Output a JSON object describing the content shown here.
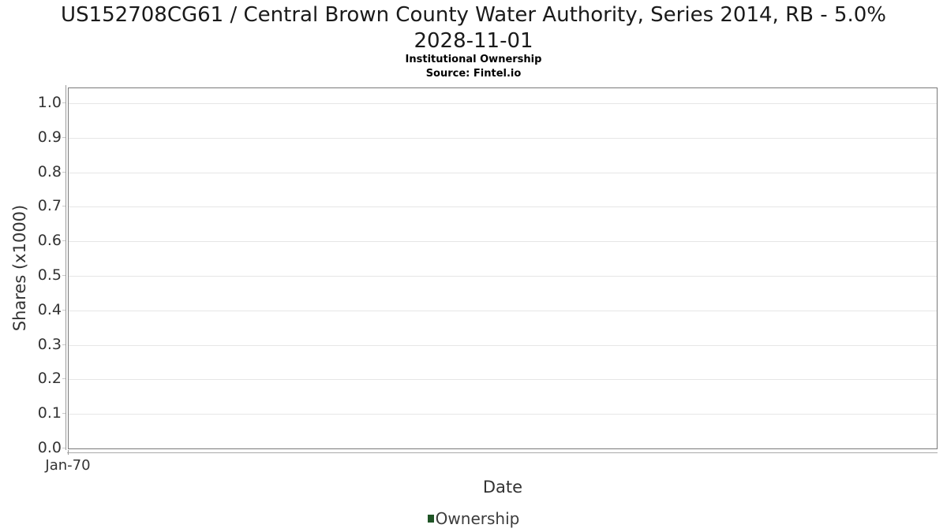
{
  "header": {
    "title_lines": [
      "US152708CG61 / Central Brown County Water Authority, Series 2014, RB - 5.0%",
      "2028-11-01"
    ],
    "subtitle": "Institutional Ownership",
    "source": "Source: Fintel.io"
  },
  "chart_data": {
    "type": "line",
    "title": "US152708CG61 / Central Brown County Water Authority, Series 2014, RB - 5.0% 2028-11-01",
    "subtitle": "Institutional Ownership",
    "source": "Source: Fintel.io",
    "xlabel": "Date",
    "ylabel": "Shares (x1000)",
    "x_tick_labels": [
      "Jan-70"
    ],
    "y_tick_labels": [
      "0.0",
      "0.1",
      "0.2",
      "0.3",
      "0.4",
      "0.5",
      "0.6",
      "0.7",
      "0.8",
      "0.9",
      "1.0"
    ],
    "ylim": [
      0.0,
      1.048
    ],
    "xlim_note": "no data plotted; single epoch tick Jan-70 at left edge",
    "grid": "horizontal",
    "legend_position": "bottom-center",
    "series": [
      {
        "name": "Ownership",
        "color": "#1f5426",
        "values": []
      }
    ],
    "colors": {
      "background": "#ffffff",
      "plot_border": "#7a7a7a",
      "gridline": "#e6e6e6",
      "axis_line": "#9a9a9a",
      "tick_mark": "#c9c9c9",
      "title_text": "#1a1a1a",
      "label_text": "#333333"
    }
  }
}
